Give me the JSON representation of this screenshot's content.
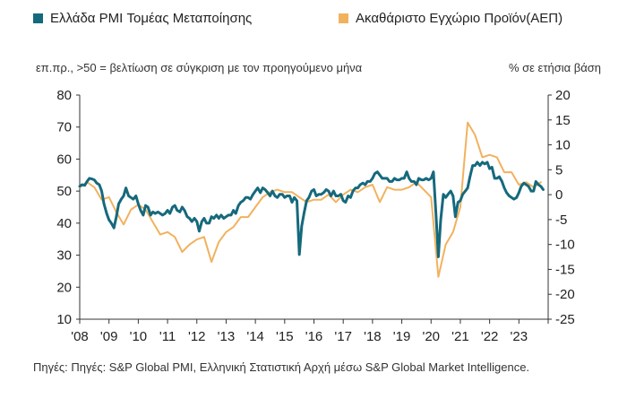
{
  "legend": {
    "pmi_label": "Ελλάδα PMI Τομέας Μεταποίησης",
    "gdp_label": "Ακαθάριστο Εγχώριο Προϊόν(ΑΕΠ)"
  },
  "notes": {
    "left": "επ.πρ., >50 = βελτίωση σε σύγκριση με τον προηγούμενο μήνα",
    "right": "% σε ετήσια βάση"
  },
  "source": "Πηγές: Πηγές: S&P Global PMI, Ελληνική Στατιστική Αρχή μέσω S&P Global Market Intelligence.",
  "colors": {
    "pmi": "#15697c",
    "gdp": "#f1b25e"
  },
  "chart_data": {
    "type": "line",
    "x_tick_labels": [
      "'08",
      "'09",
      "'10",
      "'11",
      "'12",
      "'13",
      "'14",
      "'15",
      "'16",
      "'17",
      "'18",
      "'19",
      "'20",
      "'21",
      "'22",
      "'23"
    ],
    "x_range": [
      2008.0,
      2024.0
    ],
    "y_left": {
      "ticks": [
        10,
        20,
        30,
        40,
        50,
        60,
        70,
        80
      ],
      "range": [
        10,
        80
      ]
    },
    "y_right": {
      "ticks": [
        -25,
        -20,
        -15,
        -10,
        -5,
        0,
        5,
        10,
        15,
        20
      ],
      "range": [
        -25,
        20
      ]
    },
    "grid": false,
    "series": [
      {
        "name": "Ελλάδα PMI Τομέας Μεταποίησης",
        "axis": "left",
        "points": [
          [
            2008.0,
            51.5
          ],
          [
            2008.08,
            52
          ],
          [
            2008.17,
            51.8
          ],
          [
            2008.25,
            53
          ],
          [
            2008.33,
            54
          ],
          [
            2008.42,
            53.8
          ],
          [
            2008.5,
            53.5
          ],
          [
            2008.58,
            52.5
          ],
          [
            2008.67,
            52
          ],
          [
            2008.75,
            50
          ],
          [
            2008.83,
            46
          ],
          [
            2008.92,
            43
          ],
          [
            2009.0,
            41
          ],
          [
            2009.08,
            40
          ],
          [
            2009.17,
            38.5
          ],
          [
            2009.25,
            42
          ],
          [
            2009.33,
            46
          ],
          [
            2009.42,
            47.5
          ],
          [
            2009.5,
            48.5
          ],
          [
            2009.58,
            51
          ],
          [
            2009.67,
            48.5
          ],
          [
            2009.75,
            48
          ],
          [
            2009.83,
            47.5
          ],
          [
            2009.92,
            48.5
          ],
          [
            2010.0,
            46
          ],
          [
            2010.08,
            44
          ],
          [
            2010.17,
            42.5
          ],
          [
            2010.25,
            45.5
          ],
          [
            2010.33,
            45
          ],
          [
            2010.42,
            42.5
          ],
          [
            2010.5,
            43.5
          ],
          [
            2010.58,
            43
          ],
          [
            2010.67,
            43.5
          ],
          [
            2010.75,
            43
          ],
          [
            2010.83,
            42.5
          ],
          [
            2010.92,
            43
          ],
          [
            2011.0,
            44
          ],
          [
            2011.08,
            43
          ],
          [
            2011.17,
            45
          ],
          [
            2011.25,
            45.5
          ],
          [
            2011.33,
            44
          ],
          [
            2011.42,
            43.5
          ],
          [
            2011.5,
            45
          ],
          [
            2011.58,
            44
          ],
          [
            2011.67,
            42
          ],
          [
            2011.75,
            41.5
          ],
          [
            2011.83,
            40.5
          ],
          [
            2011.92,
            41.5
          ],
          [
            2012.0,
            40.5
          ],
          [
            2012.08,
            37.5
          ],
          [
            2012.17,
            40.5
          ],
          [
            2012.25,
            41.5
          ],
          [
            2012.33,
            40
          ],
          [
            2012.42,
            40
          ],
          [
            2012.5,
            42
          ],
          [
            2012.58,
            41.5
          ],
          [
            2012.67,
            42.5
          ],
          [
            2012.75,
            41.5
          ],
          [
            2012.83,
            42.5
          ],
          [
            2012.92,
            41.5
          ],
          [
            2013.0,
            42
          ],
          [
            2013.08,
            42.5
          ],
          [
            2013.17,
            42.5
          ],
          [
            2013.25,
            44
          ],
          [
            2013.33,
            43
          ],
          [
            2013.42,
            45.5
          ],
          [
            2013.5,
            46.5
          ],
          [
            2013.58,
            47
          ],
          [
            2013.67,
            48
          ],
          [
            2013.75,
            48
          ],
          [
            2013.83,
            47.5
          ],
          [
            2013.92,
            49
          ],
          [
            2014.0,
            50
          ],
          [
            2014.08,
            51
          ],
          [
            2014.17,
            49.5
          ],
          [
            2014.25,
            51
          ],
          [
            2014.33,
            50.5
          ],
          [
            2014.42,
            49.5
          ],
          [
            2014.5,
            48.5
          ],
          [
            2014.58,
            50
          ],
          [
            2014.67,
            48.5
          ],
          [
            2014.75,
            48
          ],
          [
            2014.83,
            49
          ],
          [
            2014.92,
            49
          ],
          [
            2015.0,
            48
          ],
          [
            2015.08,
            48.5
          ],
          [
            2015.17,
            48.5
          ],
          [
            2015.25,
            46.5
          ],
          [
            2015.33,
            48
          ],
          [
            2015.42,
            47
          ],
          [
            2015.5,
            30.2
          ],
          [
            2015.58,
            39
          ],
          [
            2015.67,
            43.5
          ],
          [
            2015.75,
            47
          ],
          [
            2015.83,
            48
          ],
          [
            2015.92,
            50
          ],
          [
            2016.0,
            50.5
          ],
          [
            2016.08,
            48.5
          ],
          [
            2016.17,
            49
          ],
          [
            2016.25,
            49
          ],
          [
            2016.33,
            49.5
          ],
          [
            2016.42,
            50.5
          ],
          [
            2016.5,
            50
          ],
          [
            2016.58,
            48.5
          ],
          [
            2016.67,
            50
          ],
          [
            2016.75,
            48.5
          ],
          [
            2016.83,
            48.5
          ],
          [
            2016.92,
            49
          ],
          [
            2017.0,
            47
          ],
          [
            2017.08,
            46.5
          ],
          [
            2017.17,
            48.5
          ],
          [
            2017.25,
            48
          ],
          [
            2017.33,
            50
          ],
          [
            2017.42,
            51
          ],
          [
            2017.5,
            51
          ],
          [
            2017.58,
            52
          ],
          [
            2017.67,
            52.5
          ],
          [
            2017.75,
            52
          ],
          [
            2017.83,
            53
          ],
          [
            2017.92,
            53
          ],
          [
            2018.0,
            54
          ],
          [
            2018.08,
            55.5
          ],
          [
            2018.17,
            56
          ],
          [
            2018.25,
            55
          ],
          [
            2018.33,
            54
          ],
          [
            2018.42,
            54
          ],
          [
            2018.5,
            54
          ],
          [
            2018.58,
            53
          ],
          [
            2018.67,
            53
          ],
          [
            2018.75,
            54
          ],
          [
            2018.83,
            53.5
          ],
          [
            2018.92,
            53.5
          ],
          [
            2019.0,
            54
          ],
          [
            2019.08,
            54
          ],
          [
            2019.17,
            56
          ],
          [
            2019.25,
            54
          ],
          [
            2019.33,
            53
          ],
          [
            2019.42,
            53
          ],
          [
            2019.5,
            52
          ],
          [
            2019.58,
            54
          ],
          [
            2019.67,
            53.5
          ],
          [
            2019.75,
            53.5
          ],
          [
            2019.83,
            54
          ],
          [
            2019.92,
            53.5
          ],
          [
            2020.0,
            54
          ],
          [
            2020.08,
            56
          ],
          [
            2020.17,
            42.5
          ],
          [
            2020.25,
            29.5
          ],
          [
            2020.33,
            41
          ],
          [
            2020.42,
            49
          ],
          [
            2020.5,
            48
          ],
          [
            2020.58,
            49
          ],
          [
            2020.67,
            50
          ],
          [
            2020.75,
            48.5
          ],
          [
            2020.83,
            42
          ],
          [
            2020.92,
            46.5
          ],
          [
            2021.0,
            47
          ],
          [
            2021.08,
            49
          ],
          [
            2021.17,
            50
          ],
          [
            2021.25,
            51
          ],
          [
            2021.33,
            54.5
          ],
          [
            2021.42,
            58
          ],
          [
            2021.5,
            58
          ],
          [
            2021.58,
            59
          ],
          [
            2021.67,
            58
          ],
          [
            2021.75,
            59
          ],
          [
            2021.83,
            58.5
          ],
          [
            2021.92,
            59
          ],
          [
            2022.0,
            57
          ],
          [
            2022.08,
            57.5
          ],
          [
            2022.17,
            54
          ],
          [
            2022.25,
            54
          ],
          [
            2022.33,
            54.5
          ],
          [
            2022.42,
            53
          ],
          [
            2022.5,
            51
          ],
          [
            2022.58,
            49.5
          ],
          [
            2022.67,
            48.5
          ],
          [
            2022.75,
            48
          ],
          [
            2022.83,
            47.5
          ],
          [
            2022.92,
            48
          ],
          [
            2023.0,
            49.5
          ],
          [
            2023.08,
            51.5
          ],
          [
            2023.17,
            52.5
          ],
          [
            2023.25,
            52
          ],
          [
            2023.33,
            51.5
          ],
          [
            2023.42,
            50
          ],
          [
            2023.5,
            50
          ],
          [
            2023.58,
            53
          ],
          [
            2023.67,
            52
          ],
          [
            2023.75,
            51.5
          ],
          [
            2023.83,
            50.5
          ]
        ]
      },
      {
        "name": "Ακαθάριστο Εγχώριο Προϊόν(ΑΕΠ)",
        "axis": "right",
        "points": [
          [
            2008.0,
            1.5
          ],
          [
            2008.25,
            2.5
          ],
          [
            2008.5,
            1.5
          ],
          [
            2008.75,
            -1.0
          ],
          [
            2009.0,
            -0.5
          ],
          [
            2009.25,
            -3.5
          ],
          [
            2009.5,
            -6.0
          ],
          [
            2009.75,
            -3.0
          ],
          [
            2010.0,
            -2.0
          ],
          [
            2010.25,
            -3.0
          ],
          [
            2010.5,
            -5.5
          ],
          [
            2010.75,
            -8.0
          ],
          [
            2011.0,
            -7.5
          ],
          [
            2011.25,
            -8.5
          ],
          [
            2011.5,
            -11.5
          ],
          [
            2011.75,
            -10.0
          ],
          [
            2012.0,
            -9.0
          ],
          [
            2012.25,
            -8.5
          ],
          [
            2012.5,
            -13.5
          ],
          [
            2012.75,
            -9.5
          ],
          [
            2013.0,
            -7.5
          ],
          [
            2013.25,
            -6.5
          ],
          [
            2013.5,
            -4.5
          ],
          [
            2013.75,
            -4.5
          ],
          [
            2014.0,
            -2.5
          ],
          [
            2014.25,
            -0.5
          ],
          [
            2014.5,
            0.5
          ],
          [
            2014.75,
            1.0
          ],
          [
            2015.0,
            0.5
          ],
          [
            2015.25,
            0.5
          ],
          [
            2015.5,
            -0.5
          ],
          [
            2015.75,
            -1.5
          ],
          [
            2016.0,
            -1.0
          ],
          [
            2016.25,
            -1.0
          ],
          [
            2016.5,
            0.0
          ],
          [
            2016.75,
            -1.5
          ],
          [
            2017.0,
            0.0
          ],
          [
            2017.25,
            1.0
          ],
          [
            2017.5,
            0.5
          ],
          [
            2017.75,
            1.5
          ],
          [
            2018.0,
            2.0
          ],
          [
            2018.25,
            -1.5
          ],
          [
            2018.5,
            1.5
          ],
          [
            2018.75,
            1.0
          ],
          [
            2019.0,
            1.0
          ],
          [
            2019.25,
            1.5
          ],
          [
            2019.5,
            2.5
          ],
          [
            2019.75,
            1.0
          ],
          [
            2020.0,
            -0.5
          ],
          [
            2020.25,
            -16.5
          ],
          [
            2020.5,
            -10.0
          ],
          [
            2020.75,
            -7.5
          ],
          [
            2021.0,
            -2.5
          ],
          [
            2021.25,
            14.5
          ],
          [
            2021.5,
            12.0
          ],
          [
            2021.75,
            7.5
          ],
          [
            2022.0,
            8.0
          ],
          [
            2022.25,
            7.5
          ],
          [
            2022.5,
            4.5
          ],
          [
            2022.75,
            4.5
          ],
          [
            2023.0,
            2.0
          ],
          [
            2023.25,
            2.5
          ],
          [
            2023.5,
            1.5
          ],
          [
            2023.75,
            2.5
          ]
        ]
      }
    ]
  }
}
